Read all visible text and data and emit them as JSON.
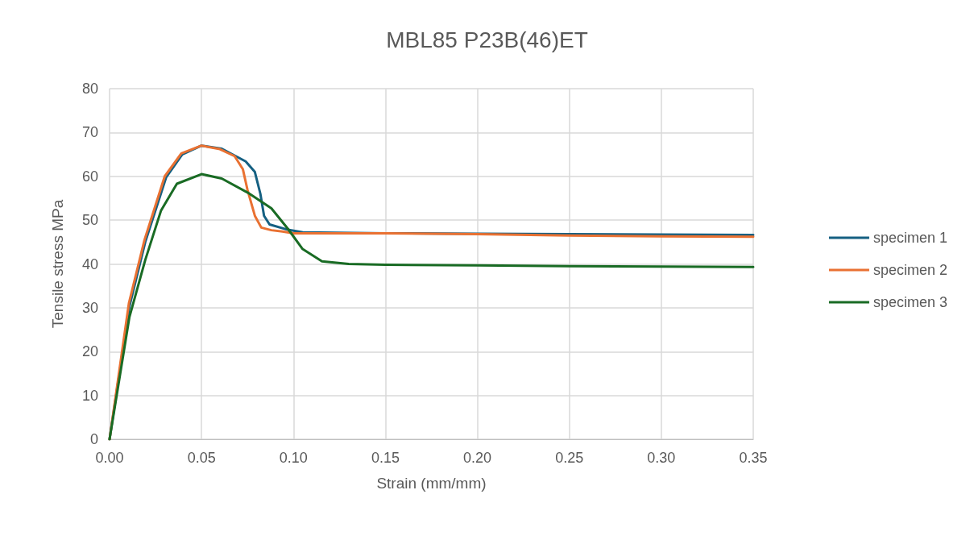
{
  "chart_data": {
    "type": "line",
    "title": "MBL85 P23B(46)ET",
    "xlabel": "Strain (mm/mm)",
    "ylabel": "Tensile stress MPa",
    "xlim": [
      0,
      0.35
    ],
    "xticks": [
      {
        "value": 0,
        "label": "0.00"
      },
      {
        "value": 0.05,
        "label": "0.05"
      },
      {
        "value": 0.1,
        "label": "0.10"
      },
      {
        "value": 0.15,
        "label": "0.15"
      },
      {
        "value": 0.2,
        "label": "0.20"
      },
      {
        "value": 0.25,
        "label": "0.25"
      },
      {
        "value": 0.3,
        "label": "0.30"
      },
      {
        "value": 0.35,
        "label": "0.35"
      }
    ],
    "ylim": [
      0,
      80
    ],
    "yticks": [
      0,
      10,
      20,
      30,
      40,
      50,
      60,
      70,
      80
    ],
    "grid": true,
    "legend": "right",
    "marker": "none",
    "line_style": "solid",
    "series": [
      {
        "name": "specimen 1",
        "color": "#156082",
        "x": [
          0,
          0.0108,
          0.0194,
          0.0308,
          0.0395,
          0.05,
          0.061,
          0.074,
          0.079,
          0.082,
          0.084,
          0.087,
          0.097,
          0.105,
          0.15,
          0.2,
          0.25,
          0.3,
          0.35
        ],
        "values": [
          0,
          30.3,
          45,
          59.8,
          65,
          67,
          66.3,
          63.4,
          61,
          56,
          51,
          49,
          47.8,
          47.2,
          47,
          46.9,
          46.8,
          46.7,
          46.6
        ]
      },
      {
        "name": "specimen 2",
        "color": "#e97132",
        "x": [
          0,
          0.0105,
          0.019,
          0.03,
          0.039,
          0.05,
          0.06,
          0.068,
          0.0725,
          0.075,
          0.079,
          0.0825,
          0.088,
          0.094,
          0.1,
          0.15,
          0.2,
          0.25,
          0.3,
          0.35
        ],
        "values": [
          0,
          31,
          45.5,
          60,
          65.2,
          67,
          66.2,
          64.6,
          61.6,
          56.9,
          51,
          48.3,
          47.7,
          47.4,
          47,
          47,
          46.8,
          46.5,
          46.3,
          46.2
        ]
      },
      {
        "name": "specimen 3",
        "color": "#196b24",
        "x": [
          0,
          0.0108,
          0.0194,
          0.028,
          0.0366,
          0.05,
          0.061,
          0.075,
          0.088,
          0.097,
          0.105,
          0.1155,
          0.13,
          0.15,
          0.2,
          0.25,
          0.3,
          0.35
        ],
        "values": [
          0,
          27.9,
          40.9,
          52.2,
          58.3,
          60.5,
          59.5,
          56.3,
          52.7,
          48,
          43.4,
          40.6,
          40,
          39.8,
          39.7,
          39.5,
          39.4,
          39.3
        ]
      }
    ]
  }
}
